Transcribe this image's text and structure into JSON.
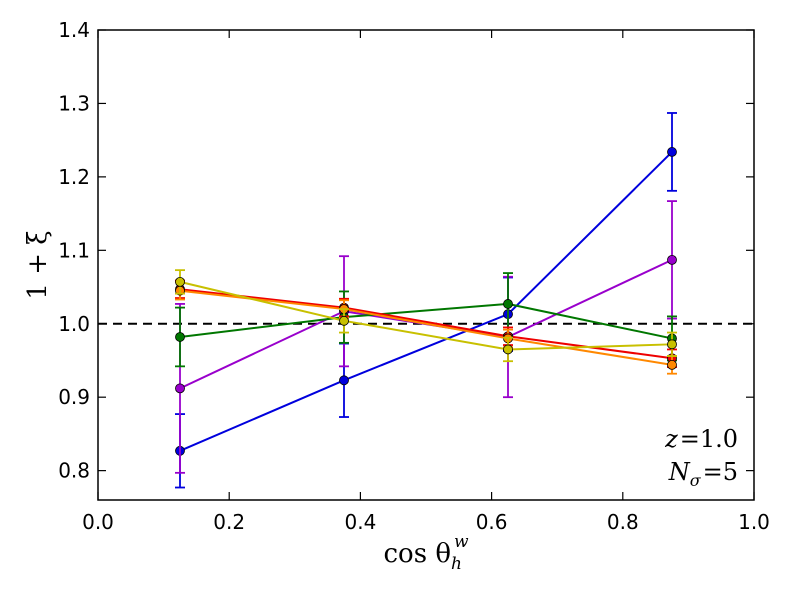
{
  "chart_data": {
    "type": "line",
    "title": "",
    "xlabel": {
      "base": "cos θ",
      "sub": "h",
      "sup": "w"
    },
    "ylabel": "1 + ξ",
    "xlim": [
      0.0,
      1.0
    ],
    "ylim": [
      0.76,
      1.4
    ],
    "xticks": [
      "0.0",
      "0.2",
      "0.4",
      "0.6",
      "0.8",
      "1.0"
    ],
    "yticks": [
      "0.8",
      "0.9",
      "1.0",
      "1.1",
      "1.2",
      "1.3",
      "1.4"
    ],
    "reference_line": 1.0,
    "x": [
      0.125,
      0.375,
      0.625,
      0.875
    ],
    "series": [
      {
        "name": "blue",
        "color": "#0000dd",
        "values": [
          0.827,
          0.923,
          1.013,
          1.234
        ],
        "errors": [
          0.05,
          0.05,
          0.05,
          0.053
        ]
      },
      {
        "name": "purple",
        "color": "#9900cc",
        "values": [
          0.912,
          1.017,
          0.982,
          1.087
        ],
        "errors": [
          0.115,
          0.075,
          0.082,
          0.08
        ]
      },
      {
        "name": "green",
        "color": "#007700",
        "values": [
          0.982,
          1.009,
          1.027,
          0.98
        ],
        "errors": [
          0.04,
          0.035,
          0.042,
          0.03
        ]
      },
      {
        "name": "red",
        "color": "#ee0000",
        "values": [
          1.047,
          1.022,
          0.983,
          0.953
        ],
        "errors": [
          0.012,
          0.012,
          0.012,
          0.012
        ]
      },
      {
        "name": "orange",
        "color": "#ff8800",
        "values": [
          1.045,
          1.02,
          0.98,
          0.944
        ],
        "errors": [
          0.012,
          0.012,
          0.012,
          0.012
        ]
      },
      {
        "name": "yellow",
        "color": "#c8c000",
        "values": [
          1.057,
          1.004,
          0.965,
          0.972
        ],
        "errors": [
          0.016,
          0.016,
          0.016,
          0.016
        ]
      }
    ],
    "annotations": {
      "z_label": "z",
      "z_value": "1.0",
      "n_label": "N",
      "n_sub": "σ",
      "n_value": "5"
    }
  }
}
